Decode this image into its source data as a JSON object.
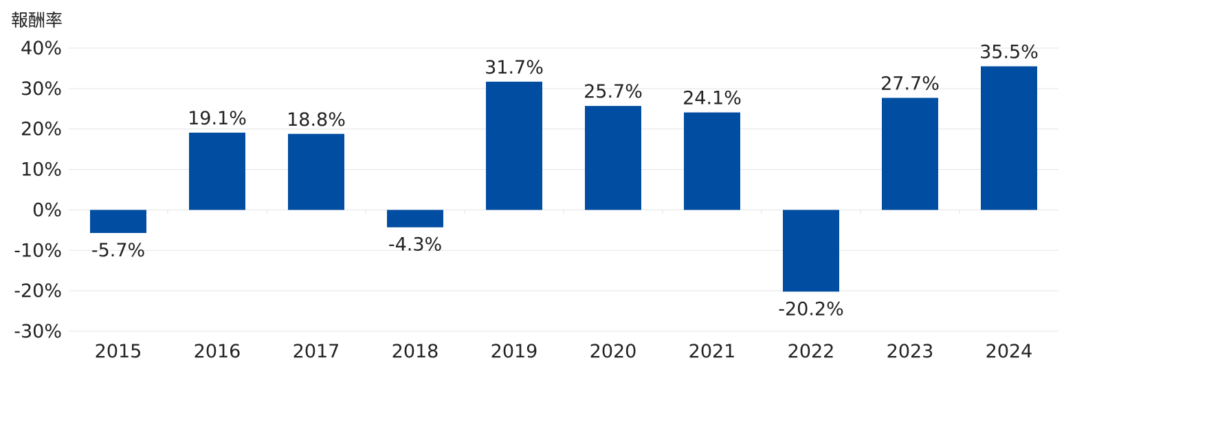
{
  "chart_data": {
    "type": "bar",
    "title": "",
    "xlabel": "",
    "ylabel": "報酬率",
    "ylim": [
      -30,
      40
    ],
    "yticks": [
      40,
      30,
      20,
      10,
      0,
      -10,
      -20,
      -30
    ],
    "ytick_labels": [
      "40%",
      "30%",
      "20%",
      "10%",
      "0%",
      "-10%",
      "-20%",
      "-30%"
    ],
    "categories": [
      "2015",
      "2016",
      "2017",
      "2018",
      "2019",
      "2020",
      "2021",
      "2022",
      "2023",
      "2024"
    ],
    "values": [
      -5.7,
      19.1,
      18.8,
      -4.3,
      31.7,
      25.7,
      24.1,
      -20.2,
      27.7,
      35.5
    ],
    "data_labels": [
      "-5.7%",
      "19.1%",
      "18.8%",
      "-4.3%",
      "31.7%",
      "25.7%",
      "24.1%",
      "-20.2%",
      "27.7%",
      "35.5%"
    ],
    "grid": true,
    "colors": {
      "bar": "#004da1",
      "grid": "#e3e3e3",
      "text": "#222222"
    }
  }
}
